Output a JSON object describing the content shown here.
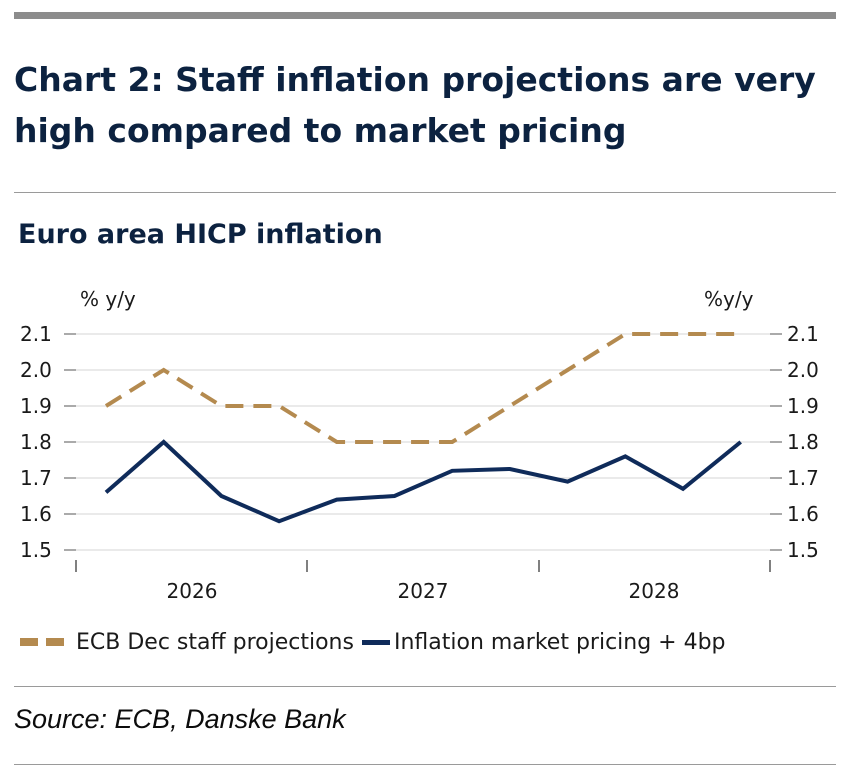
{
  "headline": "Chart 2: Staff inflation projections are very high compared to market pricing",
  "source": "Source: ECB, Danske Bank",
  "colors": {
    "projection": "#b48a4f",
    "market": "#0f2b5a",
    "title": "#0c2240"
  },
  "chart_data": {
    "type": "line",
    "title": "Euro area HICP inflation",
    "ylabel_left": "% y/y",
    "ylabel_right": "%y/y",
    "ylim": [
      1.5,
      2.1
    ],
    "yticks": [
      "1.5",
      "1.6",
      "1.7",
      "1.8",
      "1.9",
      "2.0",
      "2.1"
    ],
    "x_tick_labels": [
      "2026",
      "2027",
      "2028"
    ],
    "grid": true,
    "legend_position": "bottom",
    "series": [
      {
        "name": "ECB Dec staff projections",
        "style": "dashed",
        "x": [
          "Q1 2026",
          "Q2 2026",
          "Q3 2026",
          "Q4 2026",
          "Q1 2027",
          "Q2 2027",
          "Q3 2027",
          "Q4 2027",
          "Q1 2028",
          "Q2 2028",
          "Q3 2028",
          "Q4 2028"
        ],
        "values": [
          1.9,
          2.0,
          1.9,
          1.9,
          1.8,
          1.8,
          1.8,
          1.9,
          2.0,
          2.1,
          2.1,
          2.1
        ]
      },
      {
        "name": "Inflation market pricing + 4bp",
        "style": "solid",
        "x": [
          "Q1 2026",
          "Q2 2026",
          "Q3 2026",
          "Q4 2026",
          "Q1 2027",
          "Q2 2027",
          "Q3 2027",
          "Q4 2027",
          "Q1 2028",
          "Q2 2028",
          "Q3 2028",
          "Q4 2028"
        ],
        "values": [
          1.66,
          1.8,
          1.65,
          1.58,
          1.64,
          1.65,
          1.72,
          1.725,
          1.69,
          1.76,
          1.67,
          1.8
        ]
      }
    ]
  }
}
